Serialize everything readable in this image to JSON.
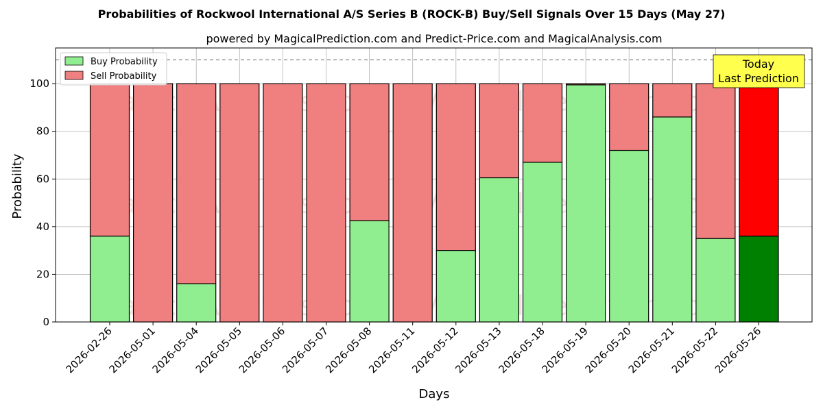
{
  "chart_data": {
    "type": "bar",
    "stacked": true,
    "title": "Probabilities of Rockwool International A/S Series B (ROCK-B) Buy/Sell Signals Over 15 Days (May 27)",
    "subtitle": "powered by MagicalPrediction.com and Predict-Price.com and MagicalAnalysis.com",
    "xlabel": "Days",
    "ylabel": "Probability",
    "ylim": [
      0,
      115
    ],
    "yticks": [
      0,
      20,
      40,
      60,
      80,
      100
    ],
    "grid": true,
    "legend_position": "top-left",
    "categories": [
      "2026-02-26",
      "2026-05-01",
      "2026-05-04",
      "2026-05-05",
      "2026-05-06",
      "2026-05-07",
      "2026-05-08",
      "2026-05-11",
      "2026-05-12",
      "2026-05-13",
      "2026-05-18",
      "2026-05-19",
      "2026-05-20",
      "2026-05-21",
      "2026-05-22",
      "2026-05-26"
    ],
    "series": [
      {
        "name": "Buy Probability",
        "color": "#90ee90",
        "values": [
          36,
          0,
          16,
          0,
          0,
          0,
          42.5,
          0,
          30,
          60.5,
          67,
          99.5,
          72,
          86,
          35,
          36
        ]
      },
      {
        "name": "Sell Probability",
        "color": "#f08080",
        "values": [
          64,
          100,
          84,
          100,
          100,
          100,
          57.5,
          100,
          70,
          39.5,
          33,
          0.5,
          28,
          14,
          65,
          64
        ]
      }
    ],
    "highlight": {
      "index": 15,
      "buy_color": "#008000",
      "sell_color": "#ff0000"
    },
    "reference_line": {
      "y": 110,
      "style": "dashed",
      "color": "#808080"
    },
    "annotation": {
      "line1": "Today",
      "line2": "Last Prediction",
      "bg": "#ffff4d"
    },
    "watermarks": [
      "MagicalAnalysis.com",
      "MagicalPrediction.com"
    ]
  }
}
